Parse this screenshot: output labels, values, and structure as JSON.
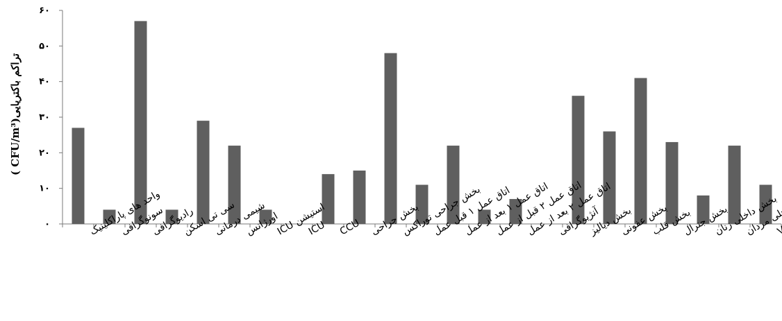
{
  "chart_data": {
    "type": "bar",
    "title": "",
    "xlabel": "",
    "ylabel": "تراکم باکتریایی(CFU/m³ )",
    "ylim": [
      0,
      60
    ],
    "yticks": [
      "۰",
      "۱۰",
      "۲۰",
      "۳۰",
      "۴۰",
      "۵۰",
      "۶۰"
    ],
    "grid": false,
    "bar_color": "#5f5f5f",
    "categories": [
      "واحد های پاراکلینیک",
      "سونوگرافی",
      "رادیوگرافی",
      "سی تی اسکن",
      "شیمی درمانی",
      "اورژانس",
      "استیشن ICU",
      "ICU",
      "CCU",
      "بخش جراحی",
      "بخش جراحی توراکس",
      "اتاق عمل ۱ قبل عمل",
      "اتاق عمل ۱ بعد از عمل",
      "اتاق عمل ۲ قبل از عمل",
      "اتاق عمل ۲ بعد از عمل",
      "آنژیوگرافی",
      "بخش دیالیز",
      "بخش عفونی",
      "بخش قلب",
      "بخش جنرال",
      "بخش داخلی زنان",
      "بخش داخلی مردان",
      "بخش VIP"
    ],
    "values": [
      27,
      4,
      57,
      4,
      29,
      22,
      4,
      0,
      14,
      15,
      48,
      11,
      22,
      4,
      7,
      0,
      36,
      26,
      41,
      23,
      8,
      22,
      11
    ]
  }
}
